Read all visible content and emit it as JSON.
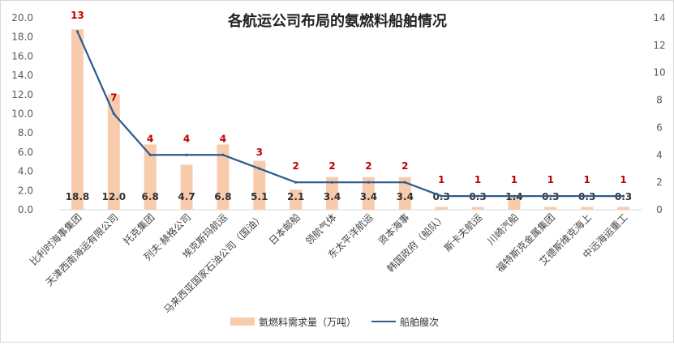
{
  "chart_data": {
    "type": "bar+line",
    "title": "各航运公司布局的氨燃料船舶情况",
    "categories": [
      "比利时海事集团",
      "天津西南海运有限公司",
      "托克集团",
      "列夫·赫格公司",
      "埃克斯玛航运",
      "马来西亚国家石油公司（国油）",
      "日本邮船",
      "领航气体",
      "东太平洋航运",
      "资本海事",
      "韩国政府（船队）",
      "斯卡夫航运",
      "川崎汽船",
      "福特斯克金属集团",
      "艾德斯维克海上",
      "中远海运重工"
    ],
    "series": [
      {
        "name": "氨燃料需求量（万吨）",
        "type": "bar",
        "axis": "left",
        "color": "#f8cbad",
        "values": [
          18.8,
          12.0,
          6.8,
          4.7,
          6.8,
          5.1,
          2.1,
          3.4,
          3.4,
          3.4,
          0.3,
          0.3,
          1.4,
          0.3,
          0.3,
          0.3
        ],
        "labels": [
          "18.8",
          "12.0",
          "6.8",
          "4.7",
          "6.8",
          "5.1",
          "2.1",
          "3.4",
          "3.4",
          "3.4",
          "0.3",
          "0.3",
          "1.4",
          "0.3",
          "0.3",
          "0.3"
        ]
      },
      {
        "name": "船舶艘次",
        "type": "line",
        "axis": "right",
        "color": "#2e5b8e",
        "values": [
          13,
          7,
          4,
          4,
          4,
          3,
          2,
          2,
          2,
          2,
          1,
          1,
          1,
          1,
          1,
          1
        ],
        "label_color": "#c00000"
      }
    ],
    "y_left": {
      "min": 0,
      "max": 20,
      "ticks": [
        "0.0",
        "2.0",
        "4.0",
        "6.0",
        "8.0",
        "10.0",
        "12.0",
        "14.0",
        "16.0",
        "18.0",
        "20.0"
      ]
    },
    "y_right": {
      "min": 0,
      "max": 14,
      "ticks": [
        "0",
        "2",
        "4",
        "6",
        "8",
        "10",
        "12",
        "14"
      ]
    },
    "grid": false,
    "legend": "bottom"
  }
}
